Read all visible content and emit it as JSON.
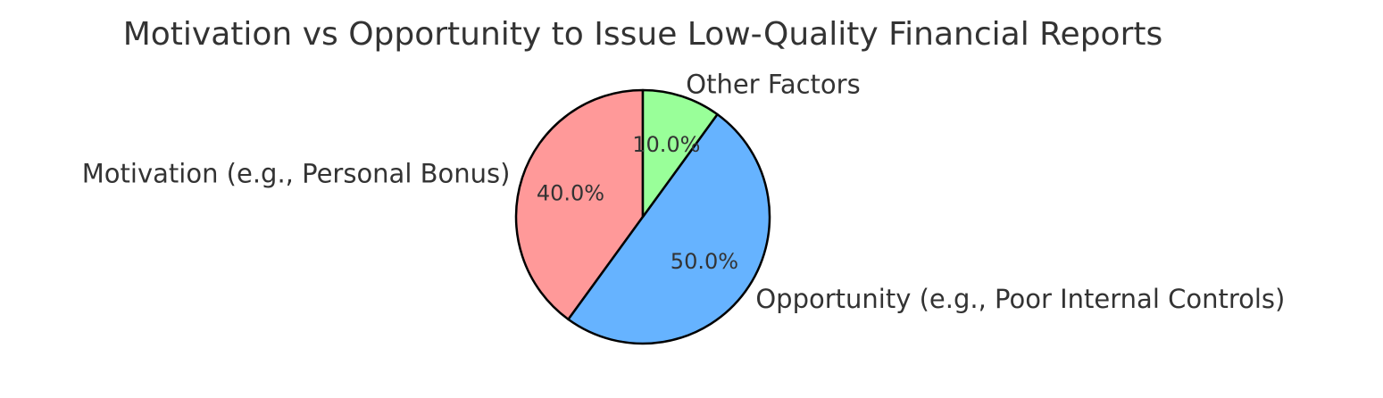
{
  "chart_data": {
    "type": "pie",
    "title": "Motivation vs Opportunity to Issue Low-Quality Financial Reports",
    "slices": [
      {
        "label": "Motivation (e.g., Personal Bonus)",
        "value": 40,
        "pct_label": "40.0%",
        "color": "#ff9999"
      },
      {
        "label": "Opportunity (e.g., Poor Internal Controls)",
        "value": 50,
        "pct_label": "50.0%",
        "color": "#66b3ff"
      },
      {
        "label": "Other Factors",
        "value": 10,
        "pct_label": "10.0%",
        "color": "#99ff99"
      }
    ],
    "start_angle_deg": 90,
    "direction": "counterclockwise",
    "edge_color": "#000000",
    "text_color": "#333333"
  }
}
